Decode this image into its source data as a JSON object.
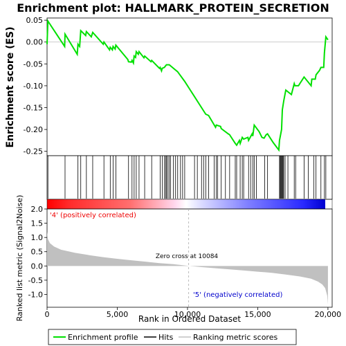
{
  "chart_data": {
    "title": "Enrichment plot: HALLMARK_PROTEIN_SECRETION",
    "type": "line",
    "top_panel": {
      "ylabel": "Enrichment score (ES)",
      "ylim": [
        -0.26,
        0.055
      ],
      "yticks": [
        0.05,
        0.0,
        -0.05,
        -0.1,
        -0.15,
        -0.2,
        -0.25
      ],
      "ytick_labels": [
        "0.05",
        "0.00",
        "-0.05",
        "-0.10",
        "-0.15",
        "-0.20",
        "-0.25"
      ],
      "series_name": "Enrichment profile",
      "color": "#00e000",
      "points": [
        [
          0,
          -0.005
        ],
        [
          60,
          0.048
        ],
        [
          1250,
          -0.01
        ],
        [
          1280,
          0.018
        ],
        [
          2150,
          -0.028
        ],
        [
          2200,
          -0.005
        ],
        [
          2320,
          -0.01
        ],
        [
          2400,
          0.026
        ],
        [
          2750,
          0.015
        ],
        [
          2800,
          0.024
        ],
        [
          3150,
          0.012
        ],
        [
          3250,
          0.022
        ],
        [
          4000,
          -0.005
        ],
        [
          4050,
          0.0
        ],
        [
          4450,
          -0.018
        ],
        [
          4500,
          -0.012
        ],
        [
          4650,
          -0.018
        ],
        [
          4700,
          -0.01
        ],
        [
          4850,
          -0.016
        ],
        [
          4900,
          -0.007
        ],
        [
          5750,
          -0.04
        ],
        [
          5800,
          -0.045
        ],
        [
          6000,
          -0.046
        ],
        [
          6050,
          -0.042
        ],
        [
          6150,
          -0.048
        ],
        [
          6200,
          -0.032
        ],
        [
          6300,
          -0.035
        ],
        [
          6350,
          -0.022
        ],
        [
          6500,
          -0.028
        ],
        [
          6550,
          -0.022
        ],
        [
          6900,
          -0.036
        ],
        [
          6950,
          -0.032
        ],
        [
          7400,
          -0.045
        ],
        [
          7450,
          -0.042
        ],
        [
          8000,
          -0.06
        ],
        [
          8050,
          -0.058
        ],
        [
          8150,
          -0.066
        ],
        [
          8200,
          -0.06
        ],
        [
          8350,
          -0.058
        ],
        [
          8500,
          -0.052
        ],
        [
          8700,
          -0.052
        ],
        [
          9300,
          -0.068
        ],
        [
          9800,
          -0.09
        ],
        [
          10500,
          -0.125
        ],
        [
          11300,
          -0.165
        ],
        [
          11500,
          -0.168
        ],
        [
          12000,
          -0.195
        ],
        [
          12050,
          -0.19
        ],
        [
          12350,
          -0.193
        ],
        [
          12400,
          -0.198
        ],
        [
          12900,
          -0.21
        ],
        [
          13000,
          -0.212
        ],
        [
          13400,
          -0.232
        ],
        [
          13500,
          -0.236
        ],
        [
          13700,
          -0.225
        ],
        [
          13750,
          -0.232
        ],
        [
          13900,
          -0.218
        ],
        [
          14000,
          -0.222
        ],
        [
          14300,
          -0.218
        ],
        [
          14350,
          -0.225
        ],
        [
          14600,
          -0.21
        ],
        [
          14650,
          -0.215
        ],
        [
          14750,
          -0.19
        ],
        [
          15100,
          -0.205
        ],
        [
          15300,
          -0.218
        ],
        [
          15450,
          -0.22
        ],
        [
          15600,
          -0.212
        ],
        [
          15700,
          -0.21
        ],
        [
          16100,
          -0.23
        ],
        [
          16500,
          -0.247
        ],
        [
          16550,
          -0.225
        ],
        [
          16700,
          -0.2
        ],
        [
          16750,
          -0.155
        ],
        [
          16850,
          -0.135
        ],
        [
          17000,
          -0.11
        ],
        [
          17400,
          -0.12
        ],
        [
          17600,
          -0.095
        ],
        [
          17650,
          -0.1
        ],
        [
          17900,
          -0.1
        ],
        [
          18300,
          -0.08
        ],
        [
          18800,
          -0.1
        ],
        [
          18850,
          -0.085
        ],
        [
          19100,
          -0.085
        ],
        [
          19150,
          -0.075
        ],
        [
          19400,
          -0.065
        ],
        [
          19500,
          -0.058
        ],
        [
          19700,
          -0.058
        ],
        [
          19750,
          -0.025
        ],
        [
          19850,
          0.012
        ],
        [
          20000,
          0.005
        ]
      ]
    },
    "hits_panel": {
      "series_name": "Hits",
      "hit_ranks": [
        60,
        1280,
        2200,
        2400,
        2800,
        3250,
        4050,
        4500,
        4700,
        4900,
        5800,
        6050,
        6200,
        6350,
        6550,
        6950,
        7450,
        8050,
        8200,
        8350,
        8450,
        8500,
        8600,
        8700,
        8800,
        9000,
        9150,
        9300,
        9500,
        9650,
        9800,
        10500,
        10700,
        11000,
        11150,
        11300,
        11500,
        11900,
        12050,
        12150,
        12400,
        12700,
        13000,
        13400,
        13500,
        13750,
        13900,
        14000,
        14350,
        14500,
        14650,
        14750,
        14900,
        15500,
        15700,
        16550,
        16600,
        16650,
        16700,
        16750,
        16800,
        16850,
        16950,
        17150,
        17600,
        17700,
        18300,
        18600,
        19000,
        19150,
        19500,
        19750,
        19850
      ]
    },
    "gradient_bar": {
      "positive_label": "'4' (positively correlated)",
      "negative_label": "'5' (negatively correlated)",
      "positive_color": "#ff0000",
      "negative_color": "#0000e0"
    },
    "bottom_panel": {
      "ylabel": "Ranked list metric (Signal2Noise)",
      "xlabel": "Rank in Ordered Dataset",
      "ylim": [
        -1.45,
        2.0
      ],
      "yticks": [
        2.0,
        1.5,
        1.0,
        0.5,
        0.0,
        -0.5,
        -1.0
      ],
      "ytick_labels": [
        "2.0",
        "1.5",
        "1.0",
        "0.5",
        "0.0",
        "-0.5",
        "-1.0"
      ],
      "xlim": [
        0,
        20300
      ],
      "xticks": [
        0,
        5000,
        10000,
        15000,
        20000
      ],
      "xtick_labels": [
        "0",
        "5,000",
        "10,000",
        "15,000",
        "20,000"
      ],
      "series_name": "Ranking metric scores",
      "fill_color": "#c0c0c0",
      "zero_cross_rank": 10084,
      "zero_cross_label": "Zero cross at 10084",
      "metric_profile": [
        [
          0,
          1.2
        ],
        [
          60,
          0.95
        ],
        [
          200,
          0.8
        ],
        [
          500,
          0.68
        ],
        [
          1000,
          0.57
        ],
        [
          2000,
          0.46
        ],
        [
          3000,
          0.38
        ],
        [
          4000,
          0.31
        ],
        [
          5000,
          0.25
        ],
        [
          6000,
          0.2
        ],
        [
          7000,
          0.15
        ],
        [
          8000,
          0.1
        ],
        [
          9000,
          0.06
        ],
        [
          10084,
          0.0
        ],
        [
          11000,
          -0.04
        ],
        [
          12000,
          -0.08
        ],
        [
          13000,
          -0.12
        ],
        [
          14000,
          -0.16
        ],
        [
          15000,
          -0.2
        ],
        [
          16000,
          -0.24
        ],
        [
          17000,
          -0.3
        ],
        [
          18000,
          -0.37
        ],
        [
          18800,
          -0.45
        ],
        [
          19300,
          -0.55
        ],
        [
          19600,
          -0.65
        ],
        [
          19800,
          -0.78
        ],
        [
          19950,
          -1.05
        ],
        [
          20000,
          -1.35
        ]
      ]
    },
    "legend": {
      "entries": [
        "Enrichment profile",
        "Hits",
        "Ranking metric scores"
      ]
    }
  }
}
